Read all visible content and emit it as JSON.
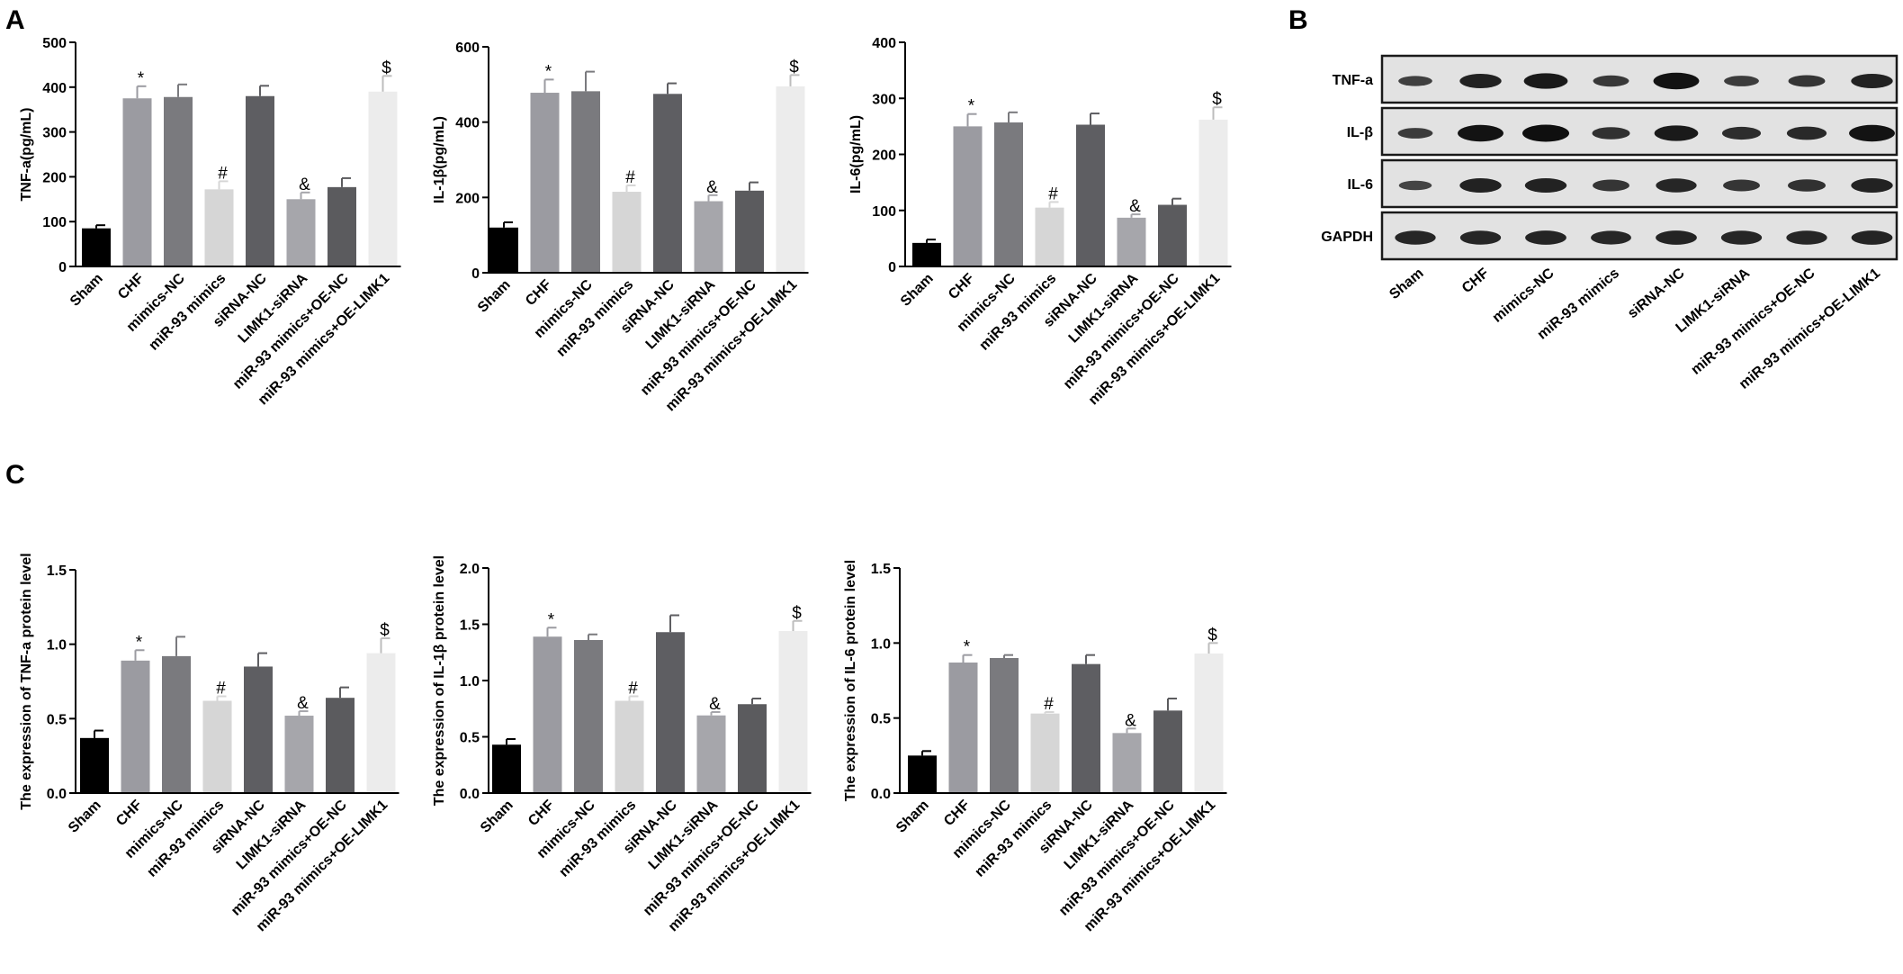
{
  "panel_letters": {
    "a": "A",
    "b": "B",
    "c": "C"
  },
  "colors": {
    "bars": [
      "#000000",
      "#9b9ba1",
      "#7a7a7e",
      "#d6d6d6",
      "#5e5e62",
      "#a6a6ab",
      "#5b5b5e",
      "#ececec"
    ],
    "axis": "#000000"
  },
  "chart_data": [
    {
      "id": "tnf-elisa",
      "type": "bar",
      "categories": [
        "Sham",
        "CHF",
        "mimics-NC",
        "miR-93 mimics",
        "siRNA-NC",
        "LIMK1-siRNA",
        "miR-93 mimics+OE-NC",
        "miR-93 mimics+OE-LIMK1"
      ],
      "values": [
        85,
        375,
        378,
        172,
        380,
        150,
        177,
        390
      ],
      "errors": [
        7,
        27,
        28,
        18,
        23,
        15,
        20,
        35
      ],
      "annotations": [
        "",
        "*",
        "",
        "#",
        "",
        "&",
        "",
        "$"
      ],
      "ylabel": "TNF-a(pg/mL)",
      "ylim": [
        0,
        500
      ],
      "yticks": [
        0,
        100,
        200,
        300,
        400,
        500
      ]
    },
    {
      "id": "il1b-elisa",
      "type": "bar",
      "categories": [
        "Sham",
        "CHF",
        "mimics-NC",
        "miR-93 mimics",
        "siRNA-NC",
        "LIMK1-siRNA",
        "miR-93 mimics+OE-NC",
        "miR-93 mimics+OE-LIMK1"
      ],
      "values": [
        120,
        478,
        482,
        215,
        475,
        190,
        218,
        495
      ],
      "errors": [
        14,
        35,
        52,
        17,
        28,
        16,
        22,
        30
      ],
      "annotations": [
        "",
        "*",
        "",
        "#",
        "",
        "&",
        "",
        "$"
      ],
      "ylabel": "IL-1β(pg/mL)",
      "ylim": [
        0,
        600
      ],
      "yticks": [
        0,
        200,
        400,
        600
      ]
    },
    {
      "id": "il6-elisa",
      "type": "bar",
      "categories": [
        "Sham",
        "CHF",
        "mimics-NC",
        "miR-93 mimics",
        "siRNA-NC",
        "LIMK1-siRNA",
        "miR-93 mimics+OE-NC",
        "miR-93 mimics+OE-LIMK1"
      ],
      "values": [
        42,
        250,
        257,
        105,
        253,
        87,
        110,
        262
      ],
      "errors": [
        6,
        22,
        18,
        10,
        20,
        6,
        11,
        22
      ],
      "annotations": [
        "",
        "*",
        "",
        "#",
        "",
        "&",
        "",
        "$"
      ],
      "ylabel": "IL-6(pg/mL)",
      "ylim": [
        0,
        400
      ],
      "yticks": [
        0,
        100,
        200,
        300,
        400
      ]
    },
    {
      "id": "tnf-protein",
      "type": "bar",
      "categories": [
        "Sham",
        "CHF",
        "mimics-NC",
        "miR-93 mimics",
        "siRNA-NC",
        "LIMK1-siRNA",
        "miR-93 mimics+OE-NC",
        "miR-93 mimics+OE-LIMK1"
      ],
      "values": [
        0.37,
        0.89,
        0.92,
        0.62,
        0.85,
        0.52,
        0.64,
        0.94
      ],
      "errors": [
        0.05,
        0.07,
        0.13,
        0.03,
        0.09,
        0.03,
        0.07,
        0.1
      ],
      "annotations": [
        "",
        "*",
        "",
        "#",
        "",
        "&",
        "",
        "$"
      ],
      "ylabel": "The expression of TNF-a protein level",
      "ylim": [
        0,
        1.5
      ],
      "yticks": [
        "0.0",
        "0.5",
        "1.0",
        "1.5"
      ]
    },
    {
      "id": "il1b-protein",
      "type": "bar",
      "categories": [
        "Sham",
        "CHF",
        "mimics-NC",
        "miR-93 mimics",
        "siRNA-NC",
        "LIMK1-siRNA",
        "miR-93 mimics+OE-NC",
        "miR-93 mimics+OE-LIMK1"
      ],
      "values": [
        0.43,
        1.39,
        1.36,
        0.82,
        1.43,
        0.69,
        0.79,
        1.44
      ],
      "errors": [
        0.05,
        0.08,
        0.05,
        0.04,
        0.15,
        0.03,
        0.05,
        0.09
      ],
      "annotations": [
        "",
        "*",
        "",
        "#",
        "",
        "&",
        "",
        "$"
      ],
      "ylabel": "The expression of IL-1β protein level",
      "ylim": [
        0,
        2.0
      ],
      "yticks": [
        "0.0",
        "0.5",
        "1.0",
        "1.5",
        "2.0"
      ]
    },
    {
      "id": "il6-protein",
      "type": "bar",
      "categories": [
        "Sham",
        "CHF",
        "mimics-NC",
        "miR-93 mimics",
        "siRNA-NC",
        "LIMK1-siRNA",
        "miR-93 mimics+OE-NC",
        "miR-93 mimics+OE-LIMK1"
      ],
      "values": [
        0.25,
        0.87,
        0.9,
        0.53,
        0.86,
        0.4,
        0.55,
        0.93
      ],
      "errors": [
        0.03,
        0.05,
        0.02,
        0.01,
        0.06,
        0.03,
        0.08,
        0.07
      ],
      "annotations": [
        "",
        "*",
        "",
        "#",
        "",
        "&",
        "",
        "$"
      ],
      "ylabel": "The expression of IL-6  protein level",
      "ylim": [
        0,
        1.5
      ],
      "yticks": [
        "0.0",
        "0.5",
        "1.0",
        "1.5"
      ]
    }
  ],
  "blot": {
    "rows": [
      "TNF-a",
      "IL-β",
      "IL-6",
      "GAPDH"
    ],
    "lanes": [
      "Sham",
      "CHF",
      "mimics-NC",
      "miR-93 mimics",
      "siRNA-NC",
      "LIMK1-siRNA",
      "miR-93 mimics+OE-NC",
      "miR-93 mimics+OE-LIMK1"
    ],
    "intensities": [
      [
        0.35,
        0.75,
        0.85,
        0.45,
        0.95,
        0.4,
        0.5,
        0.75
      ],
      [
        0.4,
        0.95,
        1.0,
        0.55,
        0.85,
        0.6,
        0.65,
        0.95
      ],
      [
        0.3,
        0.75,
        0.75,
        0.5,
        0.7,
        0.5,
        0.55,
        0.75
      ],
      [
        0.7,
        0.7,
        0.72,
        0.68,
        0.72,
        0.7,
        0.7,
        0.72
      ]
    ]
  }
}
